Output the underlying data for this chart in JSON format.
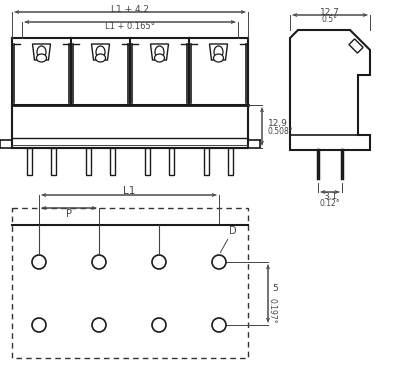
{
  "bg_color": "#ffffff",
  "line_color": "#1a1a1a",
  "dim_color": "#444444",
  "labels": {
    "L1_plus_4_2": "L1 + 4,2",
    "L1_plus_0165": "L1 + 0.165°",
    "dim_12_7": "12,7",
    "dim_0_5": "0.5°",
    "dim_12_9": "12,9",
    "dim_0508": "0.508°",
    "dim_3_1": "3,1",
    "dim_0_12": "0.12°",
    "dim_L1": "L1",
    "dim_P": "P",
    "dim_D": "D",
    "dim_5": "5",
    "dim_0197": "0.197°"
  }
}
